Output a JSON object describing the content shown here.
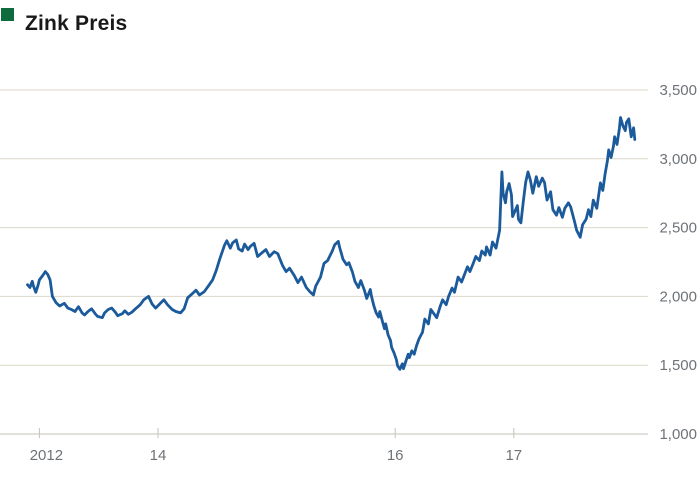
{
  "page": {
    "background": "#ffffff"
  },
  "header": {
    "title": "Zink Preis",
    "title_color": "#191919",
    "logo_color": "#0e6b3d"
  },
  "chart_data": {
    "type": "line",
    "title": "Zink Preis",
    "xlabel": "",
    "ylabel": "",
    "grid": true,
    "legend": false,
    "ylim": [
      1000,
      3500
    ],
    "xlim": [
      2012.87,
      2018.05
    ],
    "line_color": "#1b5a9b",
    "grid_color": "#dcd7c8",
    "axis_color": "#c6c2b6",
    "tick_label_color": "#6e7378",
    "yticks": [
      {
        "label": "3,500",
        "value": 3500
      },
      {
        "label": "3,000",
        "value": 3000
      },
      {
        "label": "2,500",
        "value": 2500
      },
      {
        "label": "2,000",
        "value": 2000
      },
      {
        "label": "1,500",
        "value": 1500
      },
      {
        "label": "1,000",
        "value": 1000
      }
    ],
    "xticks": [
      {
        "label": "2012",
        "x": 2013.0,
        "label_offset": 7
      },
      {
        "label": "14",
        "x": 2014.0,
        "label_offset": 0
      },
      {
        "label": "16",
        "x": 2016.0,
        "label_offset": 0
      },
      {
        "label": "17",
        "x": 2017.0,
        "label_offset": 0
      }
    ],
    "series": [
      {
        "name": "Zink Preis",
        "color": "#1b5a9b",
        "points": [
          [
            2012.9,
            2085
          ],
          [
            2012.92,
            2065
          ],
          [
            2012.94,
            2110
          ],
          [
            2012.95,
            2075
          ],
          [
            2012.97,
            2030
          ],
          [
            2012.99,
            2085
          ],
          [
            2013.0,
            2120
          ],
          [
            2013.03,
            2155
          ],
          [
            2013.05,
            2180
          ],
          [
            2013.07,
            2160
          ],
          [
            2013.09,
            2120
          ],
          [
            2013.11,
            2000
          ],
          [
            2013.14,
            1955
          ],
          [
            2013.17,
            1930
          ],
          [
            2013.21,
            1950
          ],
          [
            2013.24,
            1915
          ],
          [
            2013.27,
            1905
          ],
          [
            2013.3,
            1890
          ],
          [
            2013.33,
            1925
          ],
          [
            2013.36,
            1880
          ],
          [
            2013.38,
            1865
          ],
          [
            2013.41,
            1890
          ],
          [
            2013.44,
            1910
          ],
          [
            2013.47,
            1875
          ],
          [
            2013.49,
            1855
          ],
          [
            2013.53,
            1845
          ],
          [
            2013.55,
            1880
          ],
          [
            2013.58,
            1905
          ],
          [
            2013.61,
            1915
          ],
          [
            2013.64,
            1885
          ],
          [
            2013.66,
            1860
          ],
          [
            2013.7,
            1875
          ],
          [
            2013.72,
            1895
          ],
          [
            2013.75,
            1870
          ],
          [
            2013.78,
            1885
          ],
          [
            2013.81,
            1910
          ],
          [
            2013.85,
            1940
          ],
          [
            2013.88,
            1975
          ],
          [
            2013.92,
            2000
          ],
          [
            2013.95,
            1945
          ],
          [
            2013.98,
            1915
          ],
          [
            2014.02,
            1950
          ],
          [
            2014.05,
            1975
          ],
          [
            2014.08,
            1940
          ],
          [
            2014.12,
            1905
          ],
          [
            2014.15,
            1890
          ],
          [
            2014.19,
            1880
          ],
          [
            2014.22,
            1910
          ],
          [
            2014.25,
            1990
          ],
          [
            2014.29,
            2020
          ],
          [
            2014.32,
            2045
          ],
          [
            2014.35,
            2010
          ],
          [
            2014.39,
            2035
          ],
          [
            2014.42,
            2070
          ],
          [
            2014.46,
            2120
          ],
          [
            2014.49,
            2185
          ],
          [
            2014.52,
            2270
          ],
          [
            2014.56,
            2370
          ],
          [
            2014.58,
            2405
          ],
          [
            2014.61,
            2350
          ],
          [
            2014.63,
            2390
          ],
          [
            2014.66,
            2410
          ],
          [
            2014.68,
            2345
          ],
          [
            2014.71,
            2330
          ],
          [
            2014.73,
            2380
          ],
          [
            2014.76,
            2340
          ],
          [
            2014.78,
            2365
          ],
          [
            2014.81,
            2385
          ],
          [
            2014.84,
            2290
          ],
          [
            2014.88,
            2320
          ],
          [
            2014.91,
            2340
          ],
          [
            2014.94,
            2290
          ],
          [
            2014.98,
            2325
          ],
          [
            2015.01,
            2310
          ],
          [
            2015.05,
            2225
          ],
          [
            2015.08,
            2180
          ],
          [
            2015.11,
            2205
          ],
          [
            2015.15,
            2150
          ],
          [
            2015.18,
            2100
          ],
          [
            2015.21,
            2140
          ],
          [
            2015.25,
            2065
          ],
          [
            2015.28,
            2035
          ],
          [
            2015.31,
            2010
          ],
          [
            2015.33,
            2075
          ],
          [
            2015.37,
            2140
          ],
          [
            2015.4,
            2240
          ],
          [
            2015.43,
            2260
          ],
          [
            2015.47,
            2330
          ],
          [
            2015.49,
            2375
          ],
          [
            2015.52,
            2400
          ],
          [
            2015.53,
            2360
          ],
          [
            2015.56,
            2270
          ],
          [
            2015.59,
            2230
          ],
          [
            2015.61,
            2245
          ],
          [
            2015.64,
            2175
          ],
          [
            2015.66,
            2110
          ],
          [
            2015.69,
            2065
          ],
          [
            2015.71,
            2115
          ],
          [
            2015.74,
            2045
          ],
          [
            2015.76,
            1985
          ],
          [
            2015.79,
            2050
          ],
          [
            2015.8,
            2000
          ],
          [
            2015.82,
            1930
          ],
          [
            2015.84,
            1880
          ],
          [
            2015.86,
            1850
          ],
          [
            2015.87,
            1890
          ],
          [
            2015.89,
            1825
          ],
          [
            2015.91,
            1765
          ],
          [
            2015.92,
            1800
          ],
          [
            2015.94,
            1720
          ],
          [
            2015.96,
            1680
          ],
          [
            2015.97,
            1630
          ],
          [
            2015.99,
            1590
          ],
          [
            2016.01,
            1540
          ],
          [
            2016.02,
            1495
          ],
          [
            2016.04,
            1470
          ],
          [
            2016.06,
            1510
          ],
          [
            2016.07,
            1475
          ],
          [
            2016.09,
            1530
          ],
          [
            2016.11,
            1580
          ],
          [
            2016.12,
            1555
          ],
          [
            2016.14,
            1605
          ],
          [
            2016.16,
            1580
          ],
          [
            2016.18,
            1640
          ],
          [
            2016.2,
            1690
          ],
          [
            2016.23,
            1740
          ],
          [
            2016.25,
            1835
          ],
          [
            2016.28,
            1800
          ],
          [
            2016.3,
            1905
          ],
          [
            2016.33,
            1870
          ],
          [
            2016.35,
            1845
          ],
          [
            2016.38,
            1930
          ],
          [
            2016.4,
            1975
          ],
          [
            2016.43,
            1940
          ],
          [
            2016.45,
            2000
          ],
          [
            2016.48,
            2060
          ],
          [
            2016.5,
            2030
          ],
          [
            2016.53,
            2140
          ],
          [
            2016.56,
            2105
          ],
          [
            2016.58,
            2150
          ],
          [
            2016.61,
            2215
          ],
          [
            2016.63,
            2180
          ],
          [
            2016.66,
            2245
          ],
          [
            2016.68,
            2290
          ],
          [
            2016.71,
            2260
          ],
          [
            2016.73,
            2330
          ],
          [
            2016.76,
            2300
          ],
          [
            2016.77,
            2360
          ],
          [
            2016.8,
            2300
          ],
          [
            2016.82,
            2395
          ],
          [
            2016.85,
            2350
          ],
          [
            2016.88,
            2480
          ],
          [
            2016.89,
            2700
          ],
          [
            2016.9,
            2905
          ],
          [
            2016.91,
            2750
          ],
          [
            2016.93,
            2680
          ],
          [
            2016.94,
            2760
          ],
          [
            2016.96,
            2820
          ],
          [
            2016.98,
            2740
          ],
          [
            2016.99,
            2580
          ],
          [
            2017.01,
            2620
          ],
          [
            2017.03,
            2660
          ],
          [
            2017.04,
            2560
          ],
          [
            2017.06,
            2535
          ],
          [
            2017.08,
            2690
          ],
          [
            2017.1,
            2830
          ],
          [
            2017.12,
            2905
          ],
          [
            2017.14,
            2845
          ],
          [
            2017.16,
            2750
          ],
          [
            2017.19,
            2870
          ],
          [
            2017.21,
            2800
          ],
          [
            2017.24,
            2860
          ],
          [
            2017.26,
            2825
          ],
          [
            2017.28,
            2700
          ],
          [
            2017.31,
            2760
          ],
          [
            2017.33,
            2630
          ],
          [
            2017.36,
            2590
          ],
          [
            2017.38,
            2645
          ],
          [
            2017.41,
            2575
          ],
          [
            2017.43,
            2640
          ],
          [
            2017.46,
            2680
          ],
          [
            2017.48,
            2650
          ],
          [
            2017.51,
            2550
          ],
          [
            2017.53,
            2480
          ],
          [
            2017.56,
            2430
          ],
          [
            2017.58,
            2520
          ],
          [
            2017.61,
            2560
          ],
          [
            2017.63,
            2630
          ],
          [
            2017.65,
            2580
          ],
          [
            2017.67,
            2700
          ],
          [
            2017.68,
            2680
          ],
          [
            2017.7,
            2640
          ],
          [
            2017.73,
            2825
          ],
          [
            2017.75,
            2770
          ],
          [
            2017.77,
            2890
          ],
          [
            2017.79,
            2990
          ],
          [
            2017.8,
            3065
          ],
          [
            2017.82,
            3010
          ],
          [
            2017.84,
            3090
          ],
          [
            2017.85,
            3160
          ],
          [
            2017.87,
            3105
          ],
          [
            2017.89,
            3220
          ],
          [
            2017.9,
            3300
          ],
          [
            2017.92,
            3240
          ],
          [
            2017.94,
            3205
          ],
          [
            2017.95,
            3265
          ],
          [
            2017.97,
            3290
          ],
          [
            2017.99,
            3160
          ],
          [
            2018.01,
            3225
          ],
          [
            2018.02,
            3140
          ]
        ]
      }
    ]
  }
}
